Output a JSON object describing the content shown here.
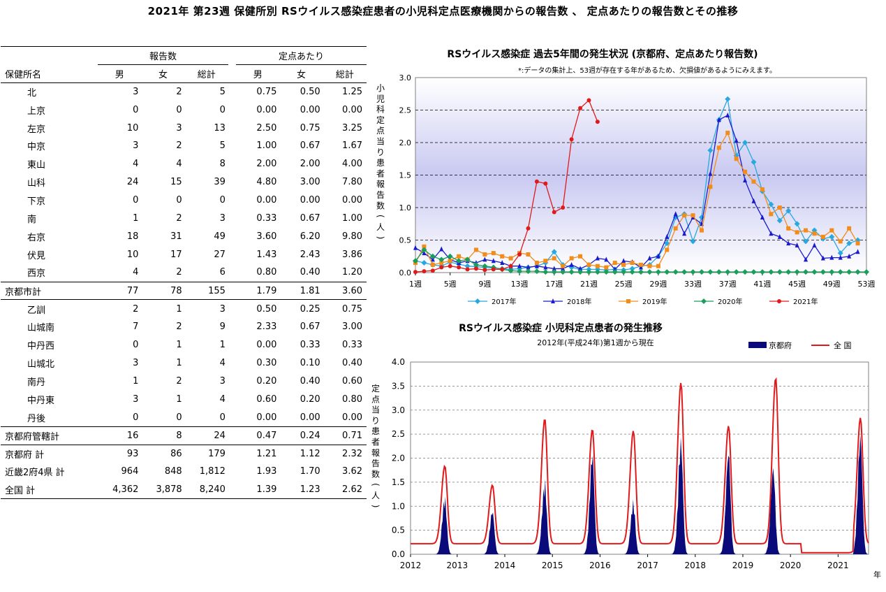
{
  "page_title": "2021年 第23週 保健所別 RSウイルス感染症患者の小児科定点医療機関からの報告数 、 定点あたりの報告数とその推移",
  "table": {
    "group_reports": "報告数",
    "group_per_site": "定点あたり",
    "col_name": "保健所名",
    "col_male": "男",
    "col_female": "女",
    "col_total": "総計",
    "rows": [
      {
        "name": "北",
        "m": "3",
        "f": "2",
        "t": "5",
        "pm": "0.75",
        "pf": "0.50",
        "pt": "1.25",
        "kind": "sub"
      },
      {
        "name": "上京",
        "m": "0",
        "f": "0",
        "t": "0",
        "pm": "0.00",
        "pf": "0.00",
        "pt": "0.00",
        "kind": "sub"
      },
      {
        "name": "左京",
        "m": "10",
        "f": "3",
        "t": "13",
        "pm": "2.50",
        "pf": "0.75",
        "pt": "3.25",
        "kind": "sub"
      },
      {
        "name": "中京",
        "m": "3",
        "f": "2",
        "t": "5",
        "pm": "1.00",
        "pf": "0.67",
        "pt": "1.67",
        "kind": "sub"
      },
      {
        "name": "東山",
        "m": "4",
        "f": "4",
        "t": "8",
        "pm": "2.00",
        "pf": "2.00",
        "pt": "4.00",
        "kind": "sub"
      },
      {
        "name": "山科",
        "m": "24",
        "f": "15",
        "t": "39",
        "pm": "4.80",
        "pf": "3.00",
        "pt": "7.80",
        "kind": "sub"
      },
      {
        "name": "下京",
        "m": "0",
        "f": "0",
        "t": "0",
        "pm": "0.00",
        "pf": "0.00",
        "pt": "0.00",
        "kind": "sub"
      },
      {
        "name": "南",
        "m": "1",
        "f": "2",
        "t": "3",
        "pm": "0.33",
        "pf": "0.67",
        "pt": "1.00",
        "kind": "sub"
      },
      {
        "name": "右京",
        "m": "18",
        "f": "31",
        "t": "49",
        "pm": "3.60",
        "pf": "6.20",
        "pt": "9.80",
        "kind": "sub"
      },
      {
        "name": "伏見",
        "m": "10",
        "f": "17",
        "t": "27",
        "pm": "1.43",
        "pf": "2.43",
        "pt": "3.86",
        "kind": "sub"
      },
      {
        "name": "西京",
        "m": "4",
        "f": "2",
        "t": "6",
        "pm": "0.80",
        "pf": "0.40",
        "pt": "1.20",
        "kind": "sub"
      },
      {
        "name": "京都市計",
        "m": "77",
        "f": "78",
        "t": "155",
        "pm": "1.79",
        "pf": "1.81",
        "pt": "3.60",
        "kind": "total"
      },
      {
        "name": "乙訓",
        "m": "2",
        "f": "1",
        "t": "3",
        "pm": "0.50",
        "pf": "0.25",
        "pt": "0.75",
        "kind": "subtop"
      },
      {
        "name": "山城南",
        "m": "7",
        "f": "2",
        "t": "9",
        "pm": "2.33",
        "pf": "0.67",
        "pt": "3.00",
        "kind": "sub"
      },
      {
        "name": "中丹西",
        "m": "0",
        "f": "1",
        "t": "1",
        "pm": "0.00",
        "pf": "0.33",
        "pt": "0.33",
        "kind": "sub"
      },
      {
        "name": "山城北",
        "m": "3",
        "f": "1",
        "t": "4",
        "pm": "0.30",
        "pf": "0.10",
        "pt": "0.40",
        "kind": "sub"
      },
      {
        "name": "南丹",
        "m": "1",
        "f": "2",
        "t": "3",
        "pm": "0.20",
        "pf": "0.40",
        "pt": "0.60",
        "kind": "sub"
      },
      {
        "name": "中丹東",
        "m": "3",
        "f": "1",
        "t": "4",
        "pm": "0.60",
        "pf": "0.20",
        "pt": "0.80",
        "kind": "sub"
      },
      {
        "name": "丹後",
        "m": "0",
        "f": "0",
        "t": "0",
        "pm": "0.00",
        "pf": "0.00",
        "pt": "0.00",
        "kind": "sub"
      },
      {
        "name": "京都府管轄計",
        "m": "16",
        "f": "8",
        "t": "24",
        "pm": "0.47",
        "pf": "0.24",
        "pt": "0.71",
        "kind": "total"
      },
      {
        "name": "京都府 計",
        "m": "93",
        "f": "86",
        "t": "179",
        "pm": "1.21",
        "pf": "1.12",
        "pt": "2.32",
        "kind": "total"
      },
      {
        "name": "近畿2府4県 計",
        "m": "964",
        "f": "848",
        "t": "1,812",
        "pm": "1.93",
        "pf": "1.70",
        "pt": "3.62",
        "kind": "plain"
      },
      {
        "name": "全国 計",
        "m": "4,362",
        "f": "3,878",
        "t": "8,240",
        "pm": "1.39",
        "pf": "1.23",
        "pt": "2.62",
        "kind": "last"
      }
    ]
  },
  "chart_data": [
    {
      "type": "line",
      "title": "RSウイルス感染症 過去5年間の発生状況 (京都府、定点あたり報告数)",
      "subtitle": "*:データの集計上、53週が存在する年があるため、欠損値があるようにみえます。",
      "ylabel": "小児科定点当り患者報告数(人)",
      "ylim": [
        0,
        3.0
      ],
      "yticks": [
        "0.0",
        "0.5",
        "1.0",
        "1.5",
        "2.0",
        "2.5",
        "3.0"
      ],
      "xlim": [
        1,
        53
      ],
      "xticks": [
        "1週",
        "5週",
        "9週",
        "13週",
        "17週",
        "21週",
        "25週",
        "29週",
        "33週",
        "37週",
        "41週",
        "45週",
        "49週",
        "53週"
      ],
      "band_color": "#c9c9f2",
      "series": [
        {
          "name": "2017年",
          "color": "#29a8e0",
          "marker": "diamond",
          "values": [
            0.18,
            0.15,
            0.12,
            0.1,
            0.16,
            0.13,
            0.1,
            0.09,
            0.08,
            0.07,
            0.06,
            0.05,
            0.06,
            0.08,
            0.1,
            0.15,
            0.32,
            0.12,
            0.08,
            0.05,
            0.05,
            0.05,
            0.04,
            0.05,
            0.04,
            0.06,
            0.1,
            0.12,
            0.25,
            0.45,
            0.85,
            0.9,
            0.48,
            0.85,
            1.88,
            2.35,
            2.67,
            1.8,
            2.0,
            1.7,
            1.25,
            1.05,
            0.8,
            0.95,
            0.75,
            0.48,
            0.65,
            0.52,
            0.55,
            0.3,
            0.45,
            0.5,
            null
          ]
        },
        {
          "name": "2018年",
          "color": "#1a1acc",
          "marker": "triangle",
          "values": [
            0.38,
            0.3,
            0.2,
            0.36,
            0.2,
            0.15,
            0.18,
            0.15,
            0.2,
            0.18,
            0.15,
            0.1,
            0.1,
            0.08,
            0.1,
            0.08,
            0.06,
            0.06,
            0.12,
            0.06,
            0.12,
            0.22,
            0.2,
            0.05,
            0.18,
            0.16,
            0.08,
            0.22,
            0.25,
            0.55,
            0.9,
            0.6,
            0.85,
            0.75,
            1.52,
            2.35,
            2.42,
            2.03,
            1.42,
            1.1,
            0.85,
            0.6,
            0.55,
            0.45,
            0.42,
            0.2,
            0.42,
            0.22,
            0.23,
            0.23,
            0.25,
            0.32,
            null
          ]
        },
        {
          "name": "2019年",
          "color": "#f28c1a",
          "marker": "square",
          "values": [
            0.15,
            0.4,
            0.12,
            0.15,
            0.18,
            0.25,
            0.2,
            0.35,
            0.28,
            0.3,
            0.25,
            0.22,
            0.3,
            0.28,
            0.15,
            0.18,
            0.22,
            0.1,
            0.22,
            0.25,
            0.12,
            0.1,
            0.08,
            0.15,
            0.12,
            0.15,
            0.12,
            0.1,
            0.1,
            0.35,
            0.68,
            0.88,
            0.88,
            0.65,
            1.32,
            1.92,
            2.15,
            1.75,
            1.55,
            1.4,
            1.28,
            0.9,
            1.0,
            0.68,
            0.62,
            0.65,
            0.6,
            0.55,
            0.65,
            0.48,
            0.68,
            0.45,
            null
          ]
        },
        {
          "name": "2020年",
          "color": "#1a9e5c",
          "marker": "diamond",
          "values": [
            0.18,
            0.35,
            0.25,
            0.2,
            0.25,
            0.18,
            0.2,
            0.12,
            0.1,
            0.08,
            0.05,
            0.03,
            0.02,
            0.02,
            0.02,
            0.01,
            0.01,
            0.01,
            0.01,
            0.01,
            0.01,
            0.01,
            0.01,
            0.01,
            0.01,
            0.01,
            0.01,
            0.01,
            0.01,
            0.01,
            0.01,
            0.01,
            0.01,
            0.01,
            0.01,
            0.01,
            0.01,
            0.01,
            0.01,
            0.01,
            0.01,
            0.01,
            0.01,
            0.01,
            0.01,
            0.01,
            0.01,
            0.01,
            0.01,
            0.01,
            0.01,
            0.01,
            0.01
          ]
        },
        {
          "name": "2021年",
          "color": "#e01a1a",
          "marker": "circle",
          "values": [
            0.01,
            0.02,
            0.03,
            0.08,
            0.1,
            0.08,
            0.05,
            0.06,
            0.04,
            0.05,
            0.05,
            0.1,
            0.28,
            0.68,
            1.4,
            1.37,
            0.93,
            1.0,
            2.05,
            2.53,
            2.65,
            2.32
          ]
        }
      ]
    },
    {
      "type": "area",
      "title": "RSウイルス感染症 小児科定点患者の発生推移",
      "subtitle": "2012年(平成24年)第1週から現在",
      "ylabel": "定点当り患者報告数(人)",
      "xlabel": "年",
      "ylim": [
        0,
        4.0
      ],
      "yticks": [
        "0.0",
        "0.5",
        "1.0",
        "1.5",
        "2.0",
        "2.5",
        "3.0",
        "3.5",
        "4.0"
      ],
      "xticks": [
        "2012",
        "2013",
        "2014",
        "2015",
        "2016",
        "2017",
        "2018",
        "2019",
        "2020",
        "2021"
      ],
      "series": [
        {
          "name": "京都府",
          "color": "#0a0a7a",
          "kind": "bar",
          "peaks": [
            [
              2012.72,
              1.25
            ],
            [
              2013.72,
              0.95
            ],
            [
              2014.82,
              1.6
            ],
            [
              2015.82,
              2.2
            ],
            [
              2016.68,
              1.15
            ],
            [
              2017.68,
              2.5
            ],
            [
              2018.68,
              2.25
            ],
            [
              2019.62,
              1.9
            ],
            [
              2021.45,
              2.6
            ]
          ]
        },
        {
          "name": "全 国",
          "color": "#e01a1a",
          "kind": "line",
          "peaks": [
            [
              2012.72,
              1.62
            ],
            [
              2013.72,
              1.22
            ],
            [
              2014.82,
              2.6
            ],
            [
              2015.82,
              2.38
            ],
            [
              2016.68,
              2.35
            ],
            [
              2017.68,
              3.35
            ],
            [
              2018.68,
              2.45
            ],
            [
              2019.67,
              3.45
            ],
            [
              2021.45,
              2.62
            ]
          ]
        }
      ]
    }
  ]
}
